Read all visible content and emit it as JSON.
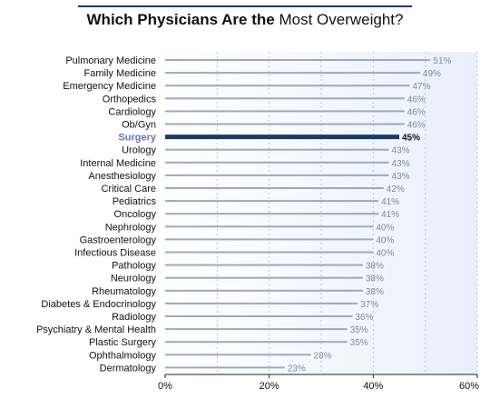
{
  "chart_data": {
    "type": "bar",
    "orientation": "horizontal",
    "title_bold": "Which Physicians Are the",
    "title_regular": "Most Overweight?",
    "xlabel": "",
    "ylabel": "",
    "xlim": [
      0,
      60
    ],
    "x_ticks": [
      0,
      20,
      40,
      60
    ],
    "x_tick_labels": [
      "0%",
      "20%",
      "40%",
      "60%"
    ],
    "grid": "vertical dashed",
    "highlight_category": "Surgery",
    "colors": {
      "bar": "#9aaabf",
      "highlight_bar": "#1b3a66",
      "highlight_label": "#5b74c2",
      "value_label": "#7a8899",
      "highlight_value_label": "#111111",
      "plot_bg_light": "#ffffff",
      "plot_bg_dark": "#e9f0fb"
    },
    "categories": [
      "Pulmonary Medicine",
      "Family Medicine",
      "Emergency Medicine",
      "Orthopedics",
      "Cardiology",
      "Ob/Gyn",
      "Surgery",
      "Urology",
      "Internal Medicine",
      "Anesthesiology",
      "Critical Care",
      "Pediatrics",
      "Oncology",
      "Nephrology",
      "Gastroenterology",
      "Infectious Disease",
      "Pathology",
      "Neurology",
      "Rheumatology",
      "Diabetes & Endocrinology",
      "Radiology",
      "Psychiatry & Mental Health",
      "Plastic Surgery",
      "Ophthalmology",
      "Dermatology"
    ],
    "values": [
      51,
      49,
      47,
      46,
      46,
      46,
      45,
      43,
      43,
      43,
      42,
      41,
      41,
      40,
      40,
      40,
      38,
      38,
      38,
      37,
      36,
      35,
      35,
      28,
      23
    ],
    "value_labels": [
      "51%",
      "49%",
      "47%",
      "46%",
      "46%",
      "46%",
      "45%",
      "43%",
      "43%",
      "43%",
      "42%",
      "41%",
      "41%",
      "40%",
      "40%",
      "40%",
      "38%",
      "38%",
      "38%",
      "37%",
      "36%",
      "35%",
      "35%",
      "28%",
      "23%"
    ]
  }
}
